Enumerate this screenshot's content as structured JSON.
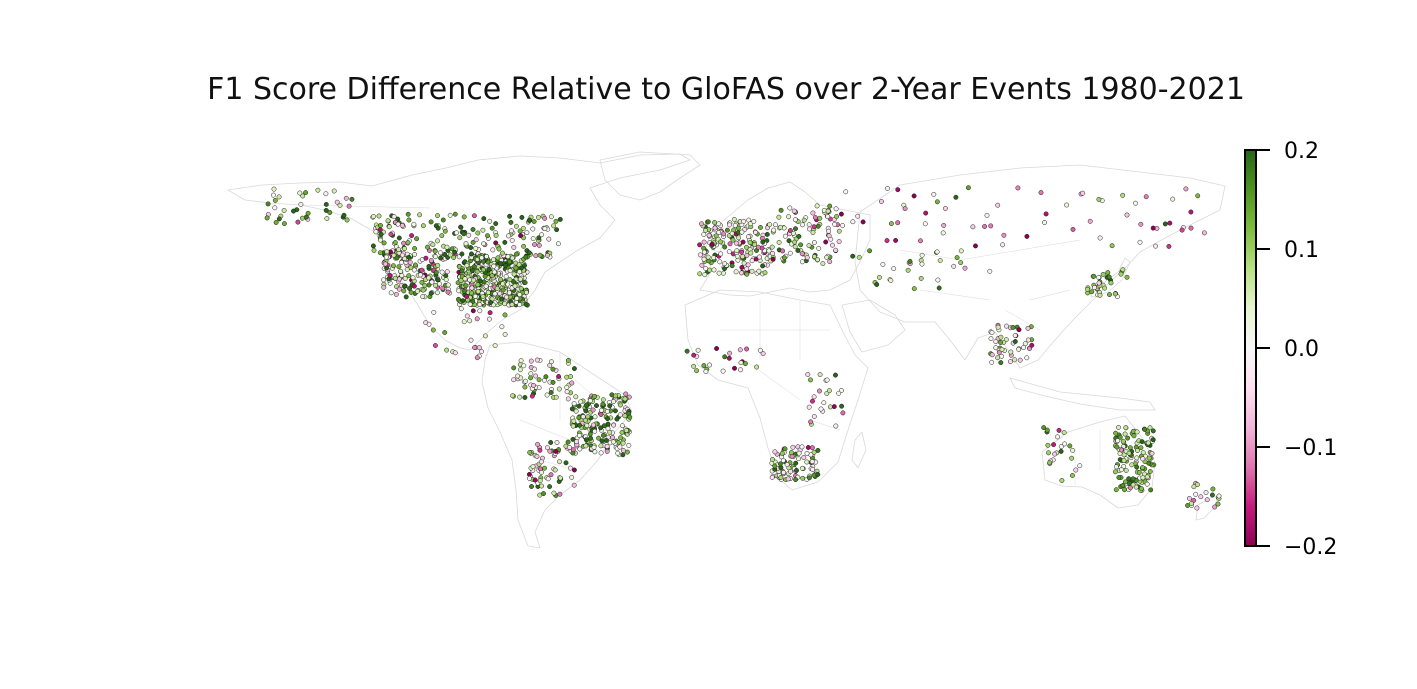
{
  "figure": {
    "title": "F1 Score Difference Relative to GloFAS over 2-Year Events 1980-2021"
  },
  "colorbar": {
    "colormap": "PiYG",
    "range": [
      -0.2,
      0.2
    ],
    "tick_values": [
      0.2,
      0.1,
      0.0,
      -0.1,
      -0.2
    ],
    "tick_labels": [
      "0.2",
      "0.1",
      "0.0",
      "−0.1",
      "−0.2"
    ],
    "colors": [
      "#8e0152",
      "#c51b7d",
      "#de77ae",
      "#f1b6da",
      "#fde0ef",
      "#f7f7f7",
      "#e6f5d0",
      "#b8e186",
      "#7fbc41",
      "#4d9221",
      "#276419"
    ]
  },
  "map": {
    "projection": "equirectangular",
    "lon_range": [
      -180,
      180
    ],
    "lat_range": [
      -60,
      85
    ],
    "land_outline_color": "#d9d9d9",
    "markers": "gauge stations colored by F1 score difference",
    "station_clusters": [
      {
        "region": "USA east",
        "lon": [
          -97,
          -72
        ],
        "lat": [
          29,
          47
        ],
        "n": 420,
        "mean": 0.09,
        "spread": 0.09
      },
      {
        "region": "USA west",
        "lon": [
          -124,
          -100
        ],
        "lat": [
          32,
          49
        ],
        "n": 170,
        "mean": 0.04,
        "spread": 0.11
      },
      {
        "region": "Canada",
        "lon": [
          -128,
          -60
        ],
        "lat": [
          46,
          62
        ],
        "n": 200,
        "mean": 0.07,
        "spread": 0.11
      },
      {
        "region": "Alaska",
        "lon": [
          -166,
          -135
        ],
        "lat": [
          58,
          71
        ],
        "n": 40,
        "mean": 0.05,
        "spread": 0.12
      },
      {
        "region": "Mexico / Central America",
        "lon": [
          -110,
          -80
        ],
        "lat": [
          10,
          28
        ],
        "n": 30,
        "mean": 0.02,
        "spread": 0.1
      },
      {
        "region": "Northern South America",
        "lon": [
          -78,
          -55
        ],
        "lat": [
          -5,
          10
        ],
        "n": 60,
        "mean": 0.05,
        "spread": 0.1
      },
      {
        "region": "Brazil",
        "lon": [
          -56,
          -35
        ],
        "lat": [
          -25,
          -3
        ],
        "n": 190,
        "mean": 0.08,
        "spread": 0.1
      },
      {
        "region": "Southern South America",
        "lon": [
          -72,
          -55
        ],
        "lat": [
          -40,
          -20
        ],
        "n": 70,
        "mean": 0.04,
        "spread": 0.12
      },
      {
        "region": "Western Europe",
        "lon": [
          -10,
          15
        ],
        "lat": [
          40,
          60
        ],
        "n": 180,
        "mean": 0.04,
        "spread": 0.1
      },
      {
        "region": "Eastern Europe",
        "lon": [
          15,
          40
        ],
        "lat": [
          44,
          65
        ],
        "n": 110,
        "mean": 0.03,
        "spread": 0.1
      },
      {
        "region": "Russia",
        "lon": [
          40,
          175
        ],
        "lat": [
          50,
          72
        ],
        "n": 70,
        "mean": -0.05,
        "spread": 0.12
      },
      {
        "region": "Central Asia",
        "lon": [
          45,
          95
        ],
        "lat": [
          35,
          50
        ],
        "n": 30,
        "mean": 0.03,
        "spread": 0.09
      },
      {
        "region": "Japan",
        "lon": [
          130,
          145
        ],
        "lat": [
          32,
          42
        ],
        "n": 35,
        "mean": 0.1,
        "spread": 0.07
      },
      {
        "region": "Southeast Asia",
        "lon": [
          95,
          110
        ],
        "lat": [
          8,
          22
        ],
        "n": 50,
        "mean": 0.0,
        "spread": 0.1
      },
      {
        "region": "West Africa",
        "lon": [
          -15,
          15
        ],
        "lat": [
          5,
          14
        ],
        "n": 25,
        "mean": 0.0,
        "spread": 0.11
      },
      {
        "region": "East Africa",
        "lon": [
          28,
          42
        ],
        "lat": [
          -15,
          5
        ],
        "n": 25,
        "mean": 0.02,
        "spread": 0.1
      },
      {
        "region": "Southern Africa",
        "lon": [
          16,
          33
        ],
        "lat": [
          -34,
          -22
        ],
        "n": 90,
        "mean": 0.05,
        "spread": 0.1
      },
      {
        "region": "East Australia",
        "lon": [
          140,
          154
        ],
        "lat": [
          -38,
          -15
        ],
        "n": 130,
        "mean": 0.1,
        "spread": 0.08
      },
      {
        "region": "West Australia",
        "lon": [
          114,
          128
        ],
        "lat": [
          -35,
          -15
        ],
        "n": 25,
        "mean": 0.04,
        "spread": 0.1
      },
      {
        "region": "New Zealand",
        "lon": [
          166,
          178
        ],
        "lat": [
          -46,
          -35
        ],
        "n": 20,
        "mean": 0.02,
        "spread": 0.1
      }
    ]
  }
}
